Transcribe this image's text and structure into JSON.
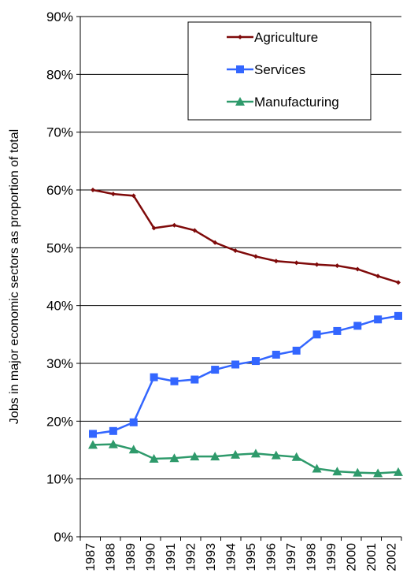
{
  "chart_data": {
    "type": "line",
    "title": "",
    "xlabel": "",
    "ylabel": "Jobs in major economic sectors as proportion of total",
    "ylim": [
      0,
      90
    ],
    "y_ticks": [
      "0%",
      "10%",
      "20%",
      "30%",
      "40%",
      "50%",
      "60%",
      "70%",
      "80%",
      "90%"
    ],
    "y_tick_values": [
      0,
      10,
      20,
      30,
      40,
      50,
      60,
      70,
      80,
      90
    ],
    "grid": "horizontal",
    "legend_position": "top-right",
    "categories": [
      "1987",
      "1988",
      "1989",
      "1990",
      "1991",
      "1992",
      "1993",
      "1994",
      "1995",
      "1996",
      "1997",
      "1998",
      "1999",
      "2000",
      "2001",
      "2002"
    ],
    "series": [
      {
        "name": "Agriculture",
        "color": "#7f0a0a",
        "marker": "diamond",
        "values": [
          60.0,
          59.3,
          59.0,
          53.4,
          53.9,
          53.0,
          50.9,
          49.5,
          48.5,
          47.7,
          47.4,
          47.1,
          46.9,
          46.3,
          45.1,
          44.0
        ]
      },
      {
        "name": "Services",
        "color": "#3366ff",
        "marker": "square",
        "values": [
          17.8,
          18.3,
          19.8,
          27.6,
          26.9,
          27.2,
          28.9,
          29.8,
          30.4,
          31.5,
          32.2,
          35.0,
          35.6,
          36.5,
          37.6,
          38.2
        ]
      },
      {
        "name": "Manufacturing",
        "color": "#2e9a6b",
        "marker": "triangle",
        "values": [
          15.9,
          16.0,
          15.1,
          13.5,
          13.6,
          13.9,
          13.9,
          14.2,
          14.4,
          14.1,
          13.8,
          11.8,
          11.3,
          11.1,
          11.0,
          11.2
        ]
      }
    ]
  }
}
